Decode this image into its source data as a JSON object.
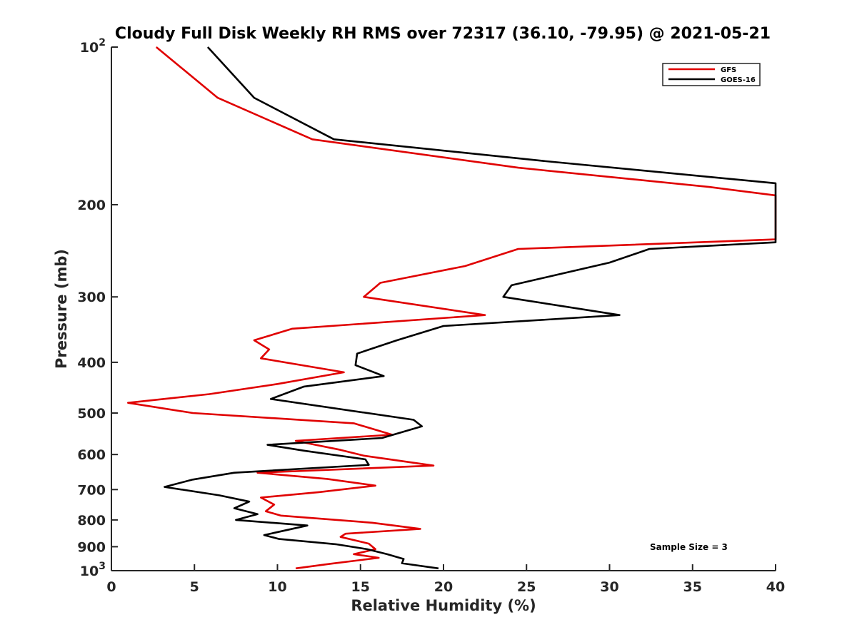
{
  "chart_data": {
    "type": "line",
    "title": "Cloudy Full Disk Weekly RH RMS over 72317 (36.10, -79.95) @ 2021-05-21",
    "xlabel": "Relative Humidity (%)",
    "ylabel": "Pressure (mb)",
    "xlim": [
      0,
      40
    ],
    "ylim": [
      100,
      1000
    ],
    "y_scale": "log",
    "y_reversed": true,
    "grid": false,
    "legend_position": "top-right",
    "annotation": "Sample Size = 3",
    "x_ticks": [
      {
        "value": 0,
        "label": "0"
      },
      {
        "value": 5,
        "label": "5"
      },
      {
        "value": 10,
        "label": "10"
      },
      {
        "value": 15,
        "label": "15"
      },
      {
        "value": 20,
        "label": "20"
      },
      {
        "value": 25,
        "label": "25"
      },
      {
        "value": 30,
        "label": "30"
      },
      {
        "value": 35,
        "label": "35"
      },
      {
        "value": 40,
        "label": "40"
      }
    ],
    "y_ticks": [
      {
        "value": 100,
        "base": "10",
        "exp": "2"
      },
      {
        "value": 200,
        "label": "200"
      },
      {
        "value": 300,
        "label": "300"
      },
      {
        "value": 400,
        "label": "400"
      },
      {
        "value": 500,
        "label": "500"
      },
      {
        "value": 600,
        "label": "600"
      },
      {
        "value": 700,
        "label": "700"
      },
      {
        "value": 800,
        "label": "800"
      },
      {
        "value": 900,
        "label": "900"
      },
      {
        "value": 1000,
        "base": "10",
        "exp": "3"
      }
    ],
    "series": [
      {
        "name": "GFS",
        "color": "#e00000",
        "points": [
          [
            2.7,
            100
          ],
          [
            6.4,
            125
          ],
          [
            12.1,
            150
          ],
          [
            24.5,
            170
          ],
          [
            36.0,
            185
          ],
          [
            40.0,
            192
          ],
          [
            40.0,
            233
          ],
          [
            24.5,
            243
          ],
          [
            21.3,
            262
          ],
          [
            16.2,
            282
          ],
          [
            15.2,
            300
          ],
          [
            22.5,
            325
          ],
          [
            10.9,
            345
          ],
          [
            8.6,
            363
          ],
          [
            9.5,
            378
          ],
          [
            9.0,
            393
          ],
          [
            14.0,
            418
          ],
          [
            10.0,
            440
          ],
          [
            5.9,
            460
          ],
          [
            1.0,
            478
          ],
          [
            4.9,
            500
          ],
          [
            14.6,
            523
          ],
          [
            16.9,
            550
          ],
          [
            11.1,
            565
          ],
          [
            13.8,
            588
          ],
          [
            15.2,
            603
          ],
          [
            19.4,
            630
          ],
          [
            8.8,
            650
          ],
          [
            13.0,
            668
          ],
          [
            15.9,
            688
          ],
          [
            12.5,
            708
          ],
          [
            9.0,
            725
          ],
          [
            9.8,
            748
          ],
          [
            9.3,
            770
          ],
          [
            10.2,
            785
          ],
          [
            15.7,
            810
          ],
          [
            18.6,
            832
          ],
          [
            14.1,
            850
          ],
          [
            13.8,
            862
          ],
          [
            15.5,
            888
          ],
          [
            15.9,
            910
          ],
          [
            14.6,
            930
          ],
          [
            16.1,
            945
          ],
          [
            13.2,
            970
          ],
          [
            11.1,
            990
          ]
        ]
      },
      {
        "name": "GOES-16",
        "color": "#000000",
        "points": [
          [
            5.8,
            100
          ],
          [
            8.6,
            125
          ],
          [
            13.4,
            150
          ],
          [
            26.0,
            165
          ],
          [
            40.0,
            182
          ],
          [
            40.0,
            236
          ],
          [
            32.4,
            243
          ],
          [
            30.0,
            258
          ],
          [
            24.1,
            285
          ],
          [
            23.6,
            300
          ],
          [
            30.6,
            325
          ],
          [
            20.0,
            341
          ],
          [
            17.2,
            363
          ],
          [
            14.8,
            385
          ],
          [
            14.7,
            405
          ],
          [
            16.4,
            425
          ],
          [
            11.6,
            445
          ],
          [
            9.6,
            470
          ],
          [
            18.2,
            515
          ],
          [
            18.7,
            530
          ],
          [
            16.3,
            558
          ],
          [
            9.4,
            575
          ],
          [
            11.6,
            590
          ],
          [
            15.3,
            613
          ],
          [
            15.5,
            628
          ],
          [
            7.4,
            650
          ],
          [
            4.9,
            670
          ],
          [
            3.2,
            692
          ],
          [
            6.5,
            718
          ],
          [
            8.3,
            738
          ],
          [
            7.4,
            760
          ],
          [
            8.8,
            780
          ],
          [
            7.5,
            800
          ],
          [
            11.8,
            820
          ],
          [
            9.2,
            855
          ],
          [
            10.1,
            870
          ],
          [
            13.5,
            890
          ],
          [
            15.4,
            910
          ],
          [
            16.6,
            930
          ],
          [
            17.6,
            950
          ],
          [
            17.5,
            968
          ],
          [
            19.7,
            990
          ]
        ]
      }
    ]
  }
}
